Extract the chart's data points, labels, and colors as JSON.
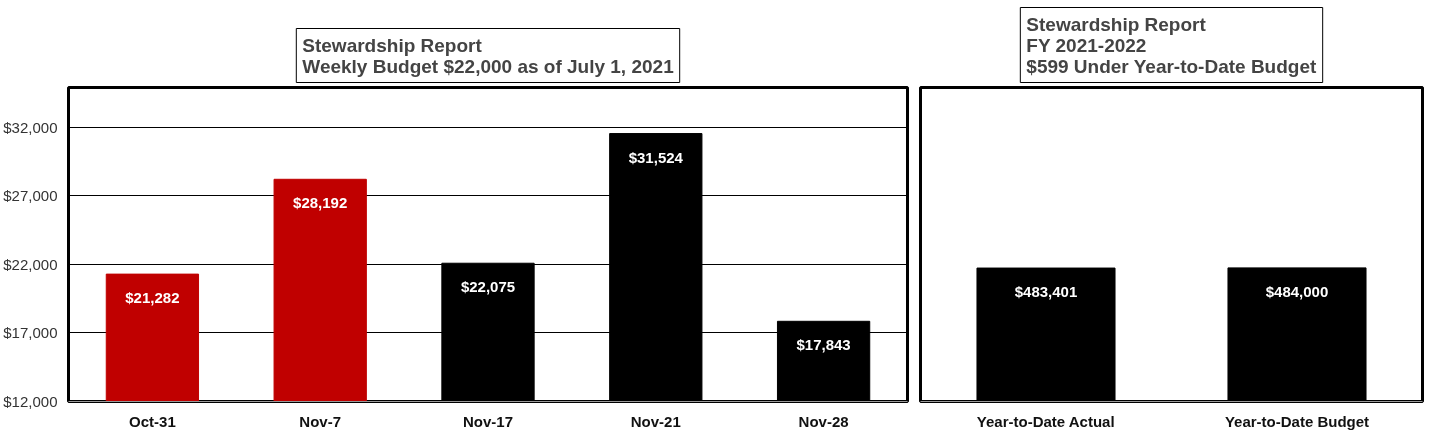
{
  "chart_data": [
    {
      "type": "bar",
      "title": "Stewardship Report\nWeekly Budget $22,000 as of July 1, 2021",
      "categories": [
        "Oct-31",
        "Nov-7",
        "Nov-17",
        "Nov-21",
        "Nov-28"
      ],
      "values": [
        21282,
        28192,
        22075,
        31524,
        17843
      ],
      "colors": [
        "#c00000",
        "#c00000",
        "#000000",
        "#000000",
        "#000000"
      ],
      "value_labels": [
        "$21,282",
        "$28,192",
        "$22,075",
        "$31,524",
        "$17,843"
      ],
      "ylim": [
        12000,
        32000
      ],
      "yticks": [
        {
          "value": 12000,
          "label": "$12,000"
        },
        {
          "value": 17000,
          "label": "$17,000"
        },
        {
          "value": 22000,
          "label": "$22,000"
        },
        {
          "value": 27000,
          "label": "$27,000"
        },
        {
          "value": 32000,
          "label": "$32,000"
        }
      ],
      "grid": "y"
    },
    {
      "type": "bar",
      "title": "Stewardship Report\nFY 2021-2022\n$599 Under Year-to-Date Budget",
      "categories": [
        "Year-to-Date Actual",
        "Year-to-Date Budget"
      ],
      "values": [
        483401,
        484000
      ],
      "colors": [
        "#000000",
        "#000000"
      ],
      "value_labels": [
        "$483,401",
        "$484,000"
      ],
      "tick_labels": "x"
    }
  ]
}
